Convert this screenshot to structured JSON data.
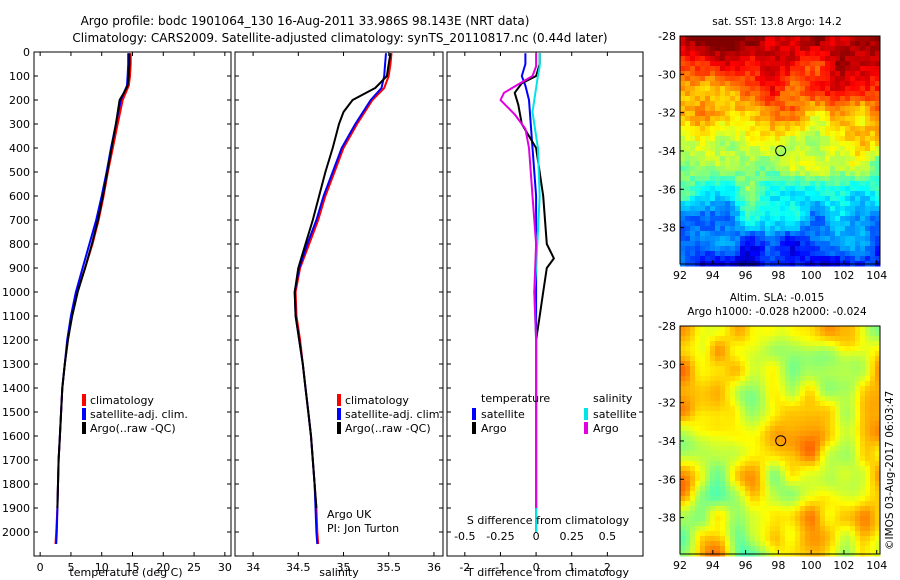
{
  "title": {
    "line1": "Argo profile: bodc 1901064_130 16-Aug-2011 33.986S 98.143E (NRT data)",
    "line2": "Climatology: CARS2009. Satellite-adjusted climatology: synTS_20110817.nc (0.44d later)"
  },
  "notes": {
    "line1": "Argo UK",
    "line2": "PI: Jon Turton"
  },
  "credit": "©IMOS 03-Aug-2017 06:03:47",
  "colors": {
    "climatology": "#ff0000",
    "satellite": "#0000ff",
    "argo": "#000000",
    "s_satellite": "#00e5e5",
    "s_argo": "#e000e0"
  },
  "chart_data": [
    {
      "type": "line",
      "xlabel": "temperature (deg C)",
      "xlim": [
        -1,
        31
      ],
      "ylim": [
        2100,
        0
      ],
      "xticks": [
        "0",
        "5",
        "10",
        "15",
        "20",
        "25",
        "30"
      ],
      "yticks": [
        "0",
        "100",
        "200",
        "300",
        "400",
        "500",
        "600",
        "700",
        "800",
        "900",
        "1000",
        "1100",
        "1200",
        "1300",
        "1400",
        "1500",
        "1600",
        "1700",
        "1800",
        "1900",
        "2000"
      ],
      "legend": [
        "climatology",
        "satellite-adj. clim.",
        "Argo(..raw -QC)"
      ],
      "series": [
        {
          "name": "climatology",
          "color": "#ff0000",
          "points": [
            [
              14.7,
              5
            ],
            [
              14.7,
              50
            ],
            [
              14.6,
              100
            ],
            [
              14.4,
              140
            ],
            [
              13.4,
              200
            ],
            [
              12.6,
              300
            ],
            [
              11.8,
              400
            ],
            [
              11.0,
              500
            ],
            [
              10.3,
              600
            ],
            [
              9.5,
              700
            ],
            [
              8.5,
              800
            ],
            [
              7.3,
              900
            ],
            [
              6.0,
              1000
            ],
            [
              5.1,
              1100
            ],
            [
              4.5,
              1200
            ],
            [
              4.0,
              1300
            ],
            [
              3.6,
              1400
            ],
            [
              3.4,
              1500
            ],
            [
              3.2,
              1600
            ],
            [
              3.0,
              1700
            ],
            [
              2.9,
              1800
            ],
            [
              2.8,
              1900
            ],
            [
              2.6,
              2000
            ],
            [
              2.5,
              2050
            ]
          ]
        },
        {
          "name": "satellite-adj. clim.",
          "color": "#0000ff",
          "points": [
            [
              14.3,
              5
            ],
            [
              14.3,
              50
            ],
            [
              14.2,
              100
            ],
            [
              14.1,
              140
            ],
            [
              13.1,
              200
            ],
            [
              12.3,
              300
            ],
            [
              11.5,
              400
            ],
            [
              10.8,
              500
            ],
            [
              10.0,
              600
            ],
            [
              9.1,
              700
            ],
            [
              8.0,
              800
            ],
            [
              6.9,
              900
            ],
            [
              5.8,
              1000
            ],
            [
              5.0,
              1100
            ],
            [
              4.4,
              1200
            ],
            [
              4.0,
              1300
            ],
            [
              3.6,
              1400
            ],
            [
              3.4,
              1500
            ],
            [
              3.2,
              1600
            ],
            [
              3.0,
              1700
            ],
            [
              2.9,
              1800
            ],
            [
              2.8,
              1900
            ],
            [
              2.7,
              2000
            ],
            [
              2.6,
              2050
            ]
          ]
        },
        {
          "name": "Argo(..raw -QC)",
          "color": "#000000",
          "points": [
            [
              14.5,
              5
            ],
            [
              14.5,
              50
            ],
            [
              14.4,
              100
            ],
            [
              14.2,
              140
            ],
            [
              13.6,
              170
            ],
            [
              12.9,
              200
            ],
            [
              12.3,
              300
            ],
            [
              11.6,
              400
            ],
            [
              10.9,
              500
            ],
            [
              10.2,
              600
            ],
            [
              9.4,
              700
            ],
            [
              8.4,
              800
            ],
            [
              7.3,
              900
            ],
            [
              6.1,
              1000
            ],
            [
              5.2,
              1100
            ],
            [
              4.5,
              1200
            ],
            [
              4.0,
              1300
            ],
            [
              3.6,
              1400
            ],
            [
              3.4,
              1500
            ],
            [
              3.2,
              1600
            ],
            [
              3.0,
              1700
            ],
            [
              2.9,
              1800
            ],
            [
              2.8,
              1900
            ]
          ]
        }
      ]
    },
    {
      "type": "line",
      "xlabel": "salinity",
      "xlim": [
        33.8,
        36.1
      ],
      "ylim": [
        2100,
        0
      ],
      "xticks": [
        "34",
        "34.5",
        "35",
        "35.5",
        "36"
      ],
      "legend": [
        "climatology",
        "satellite-adj. clim.",
        "Argo(..raw -QC)"
      ],
      "series": [
        {
          "name": "climatology",
          "color": "#ff0000",
          "points": [
            [
              35.53,
              5
            ],
            [
              35.52,
              50
            ],
            [
              35.5,
              100
            ],
            [
              35.45,
              150
            ],
            [
              35.32,
              200
            ],
            [
              35.15,
              300
            ],
            [
              35.0,
              400
            ],
            [
              34.9,
              500
            ],
            [
              34.8,
              600
            ],
            [
              34.72,
              700
            ],
            [
              34.62,
              800
            ],
            [
              34.52,
              900
            ],
            [
              34.47,
              1000
            ],
            [
              34.48,
              1100
            ],
            [
              34.52,
              1200
            ],
            [
              34.55,
              1300
            ],
            [
              34.58,
              1400
            ],
            [
              34.61,
              1500
            ],
            [
              34.64,
              1600
            ],
            [
              34.66,
              1700
            ],
            [
              34.68,
              1800
            ],
            [
              34.7,
              1900
            ],
            [
              34.71,
              2000
            ],
            [
              34.72,
              2050
            ]
          ]
        },
        {
          "name": "satellite-adj. clim.",
          "color": "#0000ff",
          "points": [
            [
              35.47,
              5
            ],
            [
              35.46,
              50
            ],
            [
              35.45,
              100
            ],
            [
              35.42,
              150
            ],
            [
              35.3,
              200
            ],
            [
              35.13,
              300
            ],
            [
              34.98,
              400
            ],
            [
              34.88,
              500
            ],
            [
              34.78,
              600
            ],
            [
              34.7,
              700
            ],
            [
              34.6,
              800
            ],
            [
              34.51,
              900
            ],
            [
              34.46,
              1000
            ],
            [
              34.47,
              1100
            ],
            [
              34.51,
              1200
            ],
            [
              34.55,
              1300
            ],
            [
              34.58,
              1400
            ],
            [
              34.61,
              1500
            ],
            [
              34.64,
              1600
            ],
            [
              34.66,
              1700
            ],
            [
              34.68,
              1800
            ],
            [
              34.69,
              1900
            ],
            [
              34.7,
              2000
            ],
            [
              34.71,
              2050
            ]
          ]
        },
        {
          "name": "Argo(..raw -QC)",
          "color": "#000000",
          "points": [
            [
              35.52,
              5
            ],
            [
              35.5,
              50
            ],
            [
              35.48,
              100
            ],
            [
              35.35,
              150
            ],
            [
              35.1,
              200
            ],
            [
              35.0,
              250
            ],
            [
              34.95,
              300
            ],
            [
              34.88,
              400
            ],
            [
              34.8,
              500
            ],
            [
              34.73,
              600
            ],
            [
              34.66,
              700
            ],
            [
              34.58,
              800
            ],
            [
              34.5,
              900
            ],
            [
              34.46,
              1000
            ],
            [
              34.47,
              1100
            ],
            [
              34.51,
              1200
            ],
            [
              34.55,
              1300
            ],
            [
              34.58,
              1400
            ],
            [
              34.61,
              1500
            ],
            [
              34.64,
              1600
            ],
            [
              34.66,
              1700
            ],
            [
              34.68,
              1800
            ],
            [
              34.7,
              1900
            ]
          ]
        }
      ]
    },
    {
      "type": "line",
      "xlabel": "T difference from climatology",
      "top_xlabel": "S difference from climatology",
      "xlim": [
        -2.5,
        3
      ],
      "ylim": [
        2100,
        0
      ],
      "xticks": [
        "-2",
        "-1",
        "0",
        "1",
        "2"
      ],
      "top_xticks": [
        "-0.5",
        "-0.25",
        "0",
        "0.25",
        "0.5"
      ],
      "legend_groups": [
        {
          "title": "temperature",
          "items": [
            "satellite",
            "Argo"
          ]
        },
        {
          "title": "salinity",
          "items": [
            "satellite",
            "Argo"
          ]
        }
      ],
      "series": [
        {
          "name": "satellite",
          "group": "temperature",
          "color": "#0000ff",
          "points": [
            [
              -0.3,
              5
            ],
            [
              -0.3,
              50
            ],
            [
              -0.4,
              100
            ],
            [
              -0.3,
              140
            ],
            [
              -0.2,
              200
            ],
            [
              -0.1,
              400
            ],
            [
              0,
              600
            ],
            [
              0,
              900
            ],
            [
              0,
              1200
            ],
            [
              0,
              1500
            ],
            [
              0,
              2000
            ]
          ]
        },
        {
          "name": "Argo",
          "group": "temperature",
          "color": "#000000",
          "points": [
            [
              0.1,
              5
            ],
            [
              0.1,
              50
            ],
            [
              0,
              100
            ],
            [
              -0.4,
              130
            ],
            [
              -0.6,
              170
            ],
            [
              -0.5,
              220
            ],
            [
              -0.4,
              300
            ],
            [
              0,
              400
            ],
            [
              0.2,
              600
            ],
            [
              0.3,
              800
            ],
            [
              0.5,
              860
            ],
            [
              0.3,
              900
            ],
            [
              0.2,
              1000
            ],
            [
              0.1,
              1100
            ],
            [
              0,
              1200
            ],
            [
              0,
              1500
            ],
            [
              0,
              1900
            ]
          ]
        },
        {
          "name": "satellite",
          "group": "salinity",
          "color": "#00e5e5",
          "points": [
            [
              0.1,
              5
            ],
            [
              0.1,
              60
            ],
            [
              0.05,
              100
            ],
            [
              0,
              150
            ],
            [
              -0.1,
              250
            ],
            [
              0.05,
              400
            ],
            [
              0.1,
              600
            ],
            [
              0,
              900
            ],
            [
              -0.05,
              1000
            ],
            [
              0,
              1200
            ],
            [
              0,
              1500
            ],
            [
              0,
              2000
            ]
          ]
        },
        {
          "name": "Argo",
          "group": "salinity",
          "color": "#e000e0",
          "points": [
            [
              0,
              5
            ],
            [
              0,
              60
            ],
            [
              -0.1,
              100
            ],
            [
              -0.9,
              170
            ],
            [
              -1.0,
              200
            ],
            [
              -0.6,
              260
            ],
            [
              -0.3,
              320
            ],
            [
              -0.2,
              400
            ],
            [
              -0.1,
              600
            ],
            [
              0,
              800
            ],
            [
              -0.05,
              1000
            ],
            [
              0,
              1200
            ],
            [
              0,
              1500
            ],
            [
              0,
              1900
            ]
          ]
        }
      ]
    }
  ],
  "maps": [
    {
      "title": "sat. SST: 13.8 Argo: 14.2",
      "kind": "sst",
      "xlim": [
        92,
        104.2
      ],
      "ylim": [
        -39.9,
        -28
      ],
      "xticks": [
        "92",
        "94",
        "96",
        "98",
        "100",
        "102",
        "104"
      ],
      "yticks": [
        "-28",
        "-30",
        "-32",
        "-34",
        "-36",
        "-38"
      ],
      "marker": [
        98.143,
        -33.986
      ]
    },
    {
      "title1": "Altim. SLA: -0.015",
      "title2": "Argo h1000: -0.028 h2000: -0.024",
      "kind": "sla",
      "xlim": [
        92,
        104.2
      ],
      "ylim": [
        -39.9,
        -28
      ],
      "xticks": [
        "92",
        "94",
        "96",
        "98",
        "100",
        "102",
        "104"
      ],
      "yticks": [
        "-28",
        "-30",
        "-32",
        "-34",
        "-36",
        "-38"
      ],
      "marker": [
        98.143,
        -33.986
      ]
    }
  ]
}
